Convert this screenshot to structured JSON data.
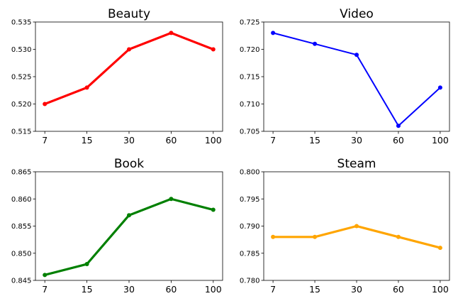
{
  "chart_data": [
    {
      "type": "line",
      "title": "Beauty",
      "categories": [
        "7",
        "15",
        "30",
        "60",
        "100"
      ],
      "values": [
        0.52,
        0.523,
        0.53,
        0.533,
        0.53
      ],
      "yticks": [
        "0.515",
        "0.520",
        "0.525",
        "0.530",
        "0.535"
      ],
      "ylim": [
        0.515,
        0.535
      ],
      "color": "#ff0000",
      "line_width": "thick",
      "grid": false
    },
    {
      "type": "line",
      "title": "Video",
      "categories": [
        "7",
        "15",
        "30",
        "60",
        "100"
      ],
      "values": [
        0.723,
        0.721,
        0.719,
        0.706,
        0.713
      ],
      "yticks": [
        "0.705",
        "0.710",
        "0.715",
        "0.720",
        "0.725"
      ],
      "ylim": [
        0.705,
        0.725
      ],
      "color": "#0000ff",
      "line_width": "thin",
      "grid": false
    },
    {
      "type": "line",
      "title": "Book",
      "categories": [
        "7",
        "15",
        "30",
        "60",
        "100"
      ],
      "values": [
        0.846,
        0.848,
        0.857,
        0.86,
        0.858
      ],
      "yticks": [
        "0.845",
        "0.850",
        "0.855",
        "0.860",
        "0.865"
      ],
      "ylim": [
        0.845,
        0.865
      ],
      "color": "#008000",
      "line_width": "thick",
      "grid": false
    },
    {
      "type": "line",
      "title": "Steam",
      "categories": [
        "7",
        "15",
        "30",
        "60",
        "100"
      ],
      "values": [
        0.788,
        0.788,
        0.79,
        0.788,
        0.786
      ],
      "yticks": [
        "0.780",
        "0.785",
        "0.790",
        "0.795",
        "0.800"
      ],
      "ylim": [
        0.78,
        0.8
      ],
      "color": "#ffa500",
      "line_width": "thick",
      "grid": false
    }
  ]
}
